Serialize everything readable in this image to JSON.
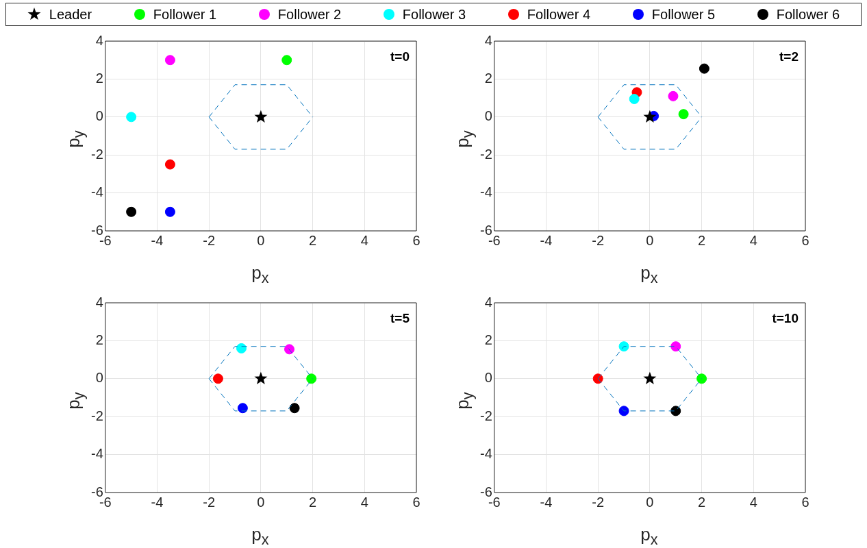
{
  "chart_data": [
    {
      "type": "scatter",
      "xlabel": "p$_{x}$",
      "ylabel": "p$_{y}$",
      "xlim": [
        -6,
        6
      ],
      "xticks": [
        -6,
        -4,
        -2,
        0,
        2,
        4,
        6
      ],
      "ylim": [
        -6,
        4
      ],
      "yticks": [
        -6,
        -4,
        -2,
        0,
        2,
        4
      ],
      "grid": true,
      "legend": "top",
      "annotations": [
        "t=0"
      ],
      "series": [
        {
          "type": "line",
          "color": "#0072bd",
          "line_style": "dashed",
          "marker": "none",
          "x": [
            -2,
            -1,
            1,
            2
          ],
          "values": [
            0,
            1.7,
            1.7,
            0
          ]
        },
        {
          "type": "line",
          "color": "#0072bd",
          "line_style": "dashed",
          "marker": "none",
          "x": [
            -2,
            -1,
            1,
            2
          ],
          "values": [
            0,
            -1.7,
            -1.7,
            0
          ]
        },
        {
          "name": "Leader",
          "color": "#000000",
          "marker": "star",
          "x": [
            0
          ],
          "values": [
            0
          ]
        },
        {
          "name": "Follower 1",
          "color": "#00ff00",
          "marker": "circle",
          "x": [
            1
          ],
          "values": [
            3
          ]
        },
        {
          "name": "Follower 2",
          "color": "#ff00ff",
          "marker": "circle",
          "x": [
            -3.5
          ],
          "values": [
            3
          ]
        },
        {
          "name": "Follower 3",
          "color": "#00ffff",
          "marker": "circle",
          "x": [
            -5
          ],
          "values": [
            0
          ]
        },
        {
          "name": "Follower 4",
          "color": "#ff0000",
          "marker": "circle",
          "x": [
            -3.5
          ],
          "values": [
            -2.5
          ]
        },
        {
          "name": "Follower 5",
          "color": "#0000ff",
          "marker": "circle",
          "x": [
            -3.5
          ],
          "values": [
            -5
          ]
        },
        {
          "name": "Follower 6",
          "color": "#000000",
          "marker": "circle",
          "x": [
            -5
          ],
          "values": [
            -5
          ]
        }
      ]
    },
    {
      "type": "scatter",
      "xlabel": "p$_{x}$",
      "ylabel": "p$_{y}$",
      "xlim": [
        -6,
        6
      ],
      "xticks": [
        -6,
        -4,
        -2,
        0,
        2,
        4,
        6
      ],
      "ylim": [
        -6,
        4
      ],
      "yticks": [
        -6,
        -4,
        -2,
        0,
        2,
        4
      ],
      "grid": true,
      "annotations": [
        "t=2"
      ],
      "series": [
        {
          "type": "line",
          "color": "#0072bd",
          "line_style": "dashed",
          "marker": "none",
          "x": [
            -2,
            -1,
            1,
            2
          ],
          "values": [
            0,
            1.7,
            1.7,
            0
          ]
        },
        {
          "type": "line",
          "color": "#0072bd",
          "line_style": "dashed",
          "marker": "none",
          "x": [
            -2,
            -1,
            1,
            2
          ],
          "values": [
            0,
            -1.7,
            -1.7,
            0
          ]
        },
        {
          "color": "#000000",
          "marker": "star",
          "x": [
            0
          ],
          "values": [
            0
          ]
        },
        {
          "color": "#00ff00",
          "marker": "circle",
          "x": [
            1.3
          ],
          "values": [
            0.15
          ]
        },
        {
          "color": "#ff00ff",
          "marker": "circle",
          "x": [
            0.9
          ],
          "values": [
            1.1
          ]
        },
        {
          "color": "#00ffff",
          "marker": "circle",
          "x": [
            -0.6
          ],
          "values": [
            0.95
          ]
        },
        {
          "color": "#ff0000",
          "marker": "circle",
          "x": [
            -0.5
          ],
          "values": [
            1.3
          ]
        },
        {
          "color": "#0000ff",
          "marker": "circle",
          "x": [
            0.15
          ],
          "values": [
            0.05
          ]
        },
        {
          "color": "#000000",
          "marker": "circle",
          "x": [
            2.1
          ],
          "values": [
            2.55
          ]
        }
      ]
    },
    {
      "type": "scatter",
      "xlabel": "p$_{x}$",
      "ylabel": "p$_{y}$",
      "xlim": [
        -6,
        6
      ],
      "xticks": [
        -6,
        -4,
        -2,
        0,
        2,
        4,
        6
      ],
      "ylim": [
        -6,
        4
      ],
      "yticks": [
        -6,
        -4,
        -2,
        0,
        2,
        4
      ],
      "grid": true,
      "annotations": [
        "t=5"
      ],
      "series": [
        {
          "type": "line",
          "color": "#0072bd",
          "line_style": "dashed",
          "marker": "none",
          "x": [
            -2,
            -1,
            1,
            2
          ],
          "values": [
            0,
            1.7,
            1.7,
            0
          ]
        },
        {
          "type": "line",
          "color": "#0072bd",
          "line_style": "dashed",
          "marker": "none",
          "x": [
            -2,
            -1,
            1,
            2
          ],
          "values": [
            0,
            -1.7,
            -1.7,
            0
          ]
        },
        {
          "color": "#000000",
          "marker": "star",
          "x": [
            0
          ],
          "values": [
            0
          ]
        },
        {
          "color": "#00ff00",
          "marker": "circle",
          "x": [
            1.95
          ],
          "values": [
            0
          ]
        },
        {
          "color": "#ff00ff",
          "marker": "circle",
          "x": [
            1.1
          ],
          "values": [
            1.55
          ]
        },
        {
          "color": "#00ffff",
          "marker": "circle",
          "x": [
            -0.75
          ],
          "values": [
            1.6
          ]
        },
        {
          "color": "#ff0000",
          "marker": "circle",
          "x": [
            -1.65
          ],
          "values": [
            0
          ]
        },
        {
          "color": "#0000ff",
          "marker": "circle",
          "x": [
            -0.7
          ],
          "values": [
            -1.55
          ]
        },
        {
          "color": "#000000",
          "marker": "circle",
          "x": [
            1.3
          ],
          "values": [
            -1.55
          ]
        }
      ]
    },
    {
      "type": "scatter",
      "xlabel": "p$_{x}$",
      "ylabel": "p$_{y}$",
      "xlim": [
        -6,
        6
      ],
      "xticks": [
        -6,
        -4,
        -2,
        0,
        2,
        4,
        6
      ],
      "ylim": [
        -6,
        4
      ],
      "yticks": [
        -6,
        -4,
        -2,
        0,
        2,
        4
      ],
      "grid": true,
      "annotations": [
        "t=10"
      ],
      "series": [
        {
          "type": "line",
          "color": "#0072bd",
          "line_style": "dashed",
          "marker": "none",
          "x": [
            -2,
            -1,
            1,
            2
          ],
          "values": [
            0,
            1.7,
            1.7,
            0
          ]
        },
        {
          "type": "line",
          "color": "#0072bd",
          "line_style": "dashed",
          "marker": "none",
          "x": [
            -2,
            -1,
            1,
            2
          ],
          "values": [
            0,
            -1.7,
            -1.7,
            0
          ]
        },
        {
          "color": "#000000",
          "marker": "star",
          "x": [
            0
          ],
          "values": [
            0
          ]
        },
        {
          "color": "#00ff00",
          "marker": "circle",
          "x": [
            2
          ],
          "values": [
            0
          ]
        },
        {
          "color": "#ff00ff",
          "marker": "circle",
          "x": [
            1
          ],
          "values": [
            1.7
          ]
        },
        {
          "color": "#00ffff",
          "marker": "circle",
          "x": [
            -1
          ],
          "values": [
            1.7
          ]
        },
        {
          "color": "#ff0000",
          "marker": "circle",
          "x": [
            -2
          ],
          "values": [
            0
          ]
        },
        {
          "color": "#0000ff",
          "marker": "circle",
          "x": [
            -1
          ],
          "values": [
            -1.7
          ]
        },
        {
          "color": "#000000",
          "marker": "circle",
          "x": [
            1
          ],
          "values": [
            -1.7
          ]
        }
      ]
    }
  ]
}
